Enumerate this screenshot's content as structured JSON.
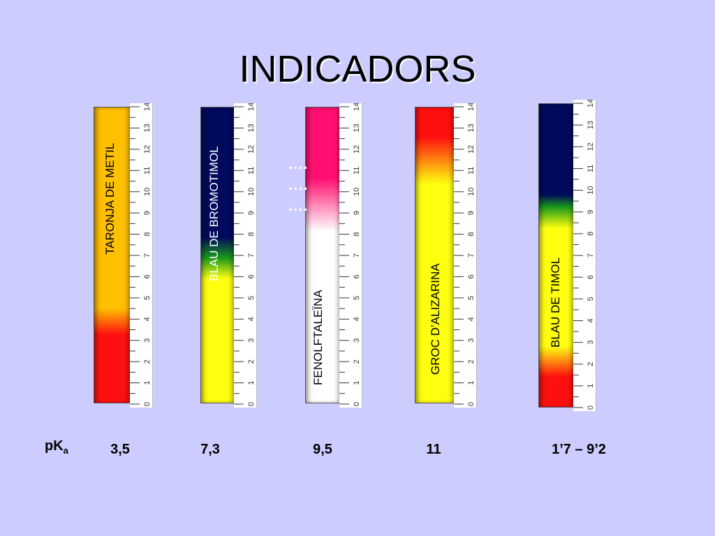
{
  "title": "INDICADORS",
  "scale_ticks": [
    "0",
    "1",
    "2",
    "3",
    "4",
    "5",
    "6",
    "7",
    "8",
    "9",
    "10",
    "11",
    "12",
    "13",
    "14"
  ],
  "indicators": [
    {
      "name": "TARONJA DE METIL",
      "pka": "3,5"
    },
    {
      "name": "BLAU DE BROMOTIMOL",
      "pka": "7,3"
    },
    {
      "name": "FENOLFTALEÏNA",
      "pka": "9,5",
      "dots": "...."
    },
    {
      "name": "GROC D’ALIZARINA",
      "pka": "11"
    },
    {
      "name": "BLAU DE TIMOL",
      "pka": "1’7 – 9’2"
    }
  ],
  "pka_label": {
    "main": "pK",
    "sub": "a"
  },
  "colors": {
    "background": "#ccccff",
    "red": "#ff1010",
    "orange": "#ffc000",
    "yellow": "#ffff10",
    "navy": "#000a5c",
    "green": "#1a9a1a",
    "magenta": "#ff1070",
    "white": "#ffffff"
  }
}
